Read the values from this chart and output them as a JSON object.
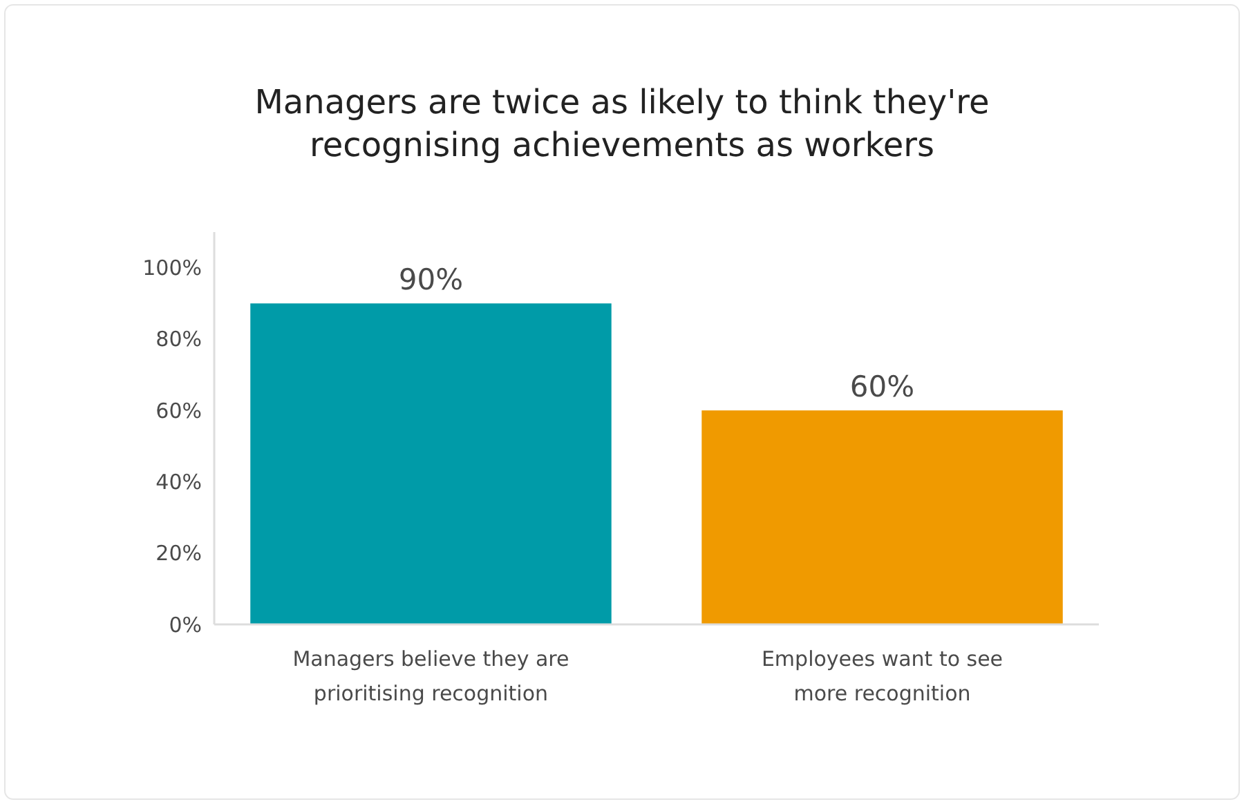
{
  "chart_data": {
    "type": "bar",
    "title": "Managers are twice as likely to think they're recognising achievements as workers",
    "categories": [
      "Managers believe they are prioritising recognition",
      "Employees want to see more recognition"
    ],
    "values": [
      90,
      60
    ],
    "colors": [
      "#009ba8",
      "#f09a00"
    ],
    "value_labels": [
      "90%",
      "60%"
    ],
    "ylim": [
      0,
      110
    ],
    "yticks": [
      {
        "value": 0,
        "label": "0%"
      },
      {
        "value": 20,
        "label": "20%"
      },
      {
        "value": 40,
        "label": "40%"
      },
      {
        "value": 60,
        "label": "60%"
      },
      {
        "value": 80,
        "label": "80%"
      },
      {
        "value": 100,
        "label": "100%"
      }
    ],
    "grid": false
  }
}
